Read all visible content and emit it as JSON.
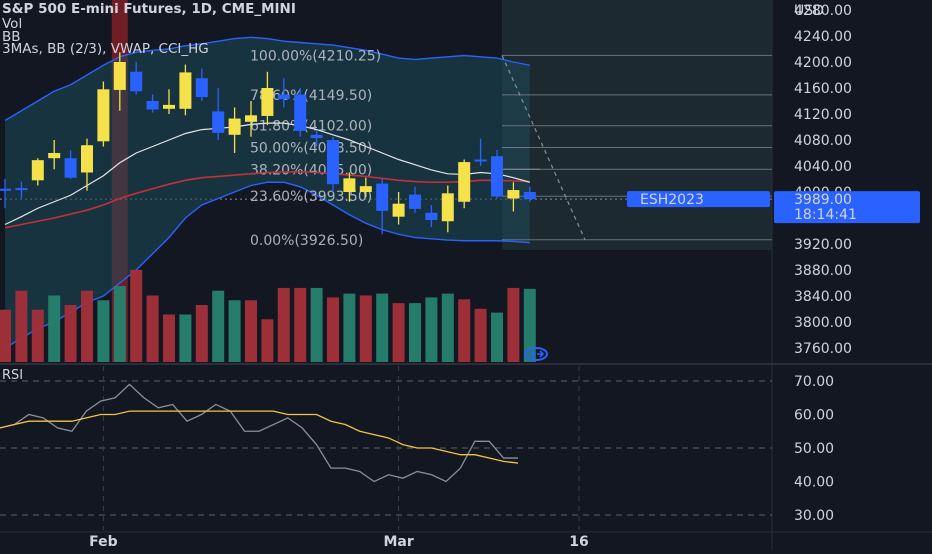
{
  "header": {
    "title": "S&P 500 E-mini Futures, 1D, CME_MINI",
    "line1": "Vol",
    "line2": "BB",
    "line3": "3MAs, BB (2/3), VWAP, CCI_HG"
  },
  "rsi_label": "RSI",
  "colors": {
    "background": "#131722",
    "up": "#f5e14a",
    "down": "#2962ff",
    "vol_up": "#26826f",
    "vol_down": "#a3303a",
    "bb_line": "#2962ff",
    "bb_fill": "#1e4a5a",
    "ma_white": "#e6e6e6",
    "ma_red": "#c2303a",
    "rsi_line": "#8a8e99",
    "rsi_ma": "#f5c242",
    "price_tag": "#2962ff",
    "highlight_red": "#7a1f26"
  },
  "chart_data": [
    {
      "type": "candlestick",
      "title": "S&P 500 E-mini Futures, 1D, CME_MINI",
      "currency": "USD",
      "ylim": [
        3740,
        4320
      ],
      "y_ticks": [
        3760,
        3800,
        3840,
        3880,
        3920,
        3960,
        4000,
        4040,
        4080,
        4120,
        4160,
        4200,
        4240,
        4280
      ],
      "y_tick_labels": [
        "3760.00",
        "3800.00",
        "3840.00",
        "3880.00",
        "3920.00",
        "3960.00",
        "4000.00",
        "4040.00",
        "4080.00",
        "4120.00",
        "4160.00",
        "4200.00",
        "4240.00",
        "4280.00"
      ],
      "x_ticks": [
        {
          "label": "Feb",
          "index": 6
        },
        {
          "label": "Mar",
          "index": 24
        },
        {
          "label": "16",
          "index": 35
        }
      ],
      "candles": [
        {
          "o": 4005,
          "h": 4020,
          "l": 3975,
          "c": 4003
        },
        {
          "o": 4006,
          "h": 4016,
          "l": 3990,
          "c": 4004
        },
        {
          "o": 4018,
          "h": 4052,
          "l": 4010,
          "c": 4049
        },
        {
          "o": 4052,
          "h": 4080,
          "l": 4035,
          "c": 4060
        },
        {
          "o": 4052,
          "h": 4064,
          "l": 4020,
          "c": 4022
        },
        {
          "o": 4030,
          "h": 4082,
          "l": 4002,
          "c": 4072
        },
        {
          "o": 4078,
          "h": 4170,
          "l": 4070,
          "c": 4158
        },
        {
          "o": 4157,
          "h": 4215,
          "l": 4125,
          "c": 4200
        },
        {
          "o": 4185,
          "h": 4200,
          "l": 4150,
          "c": 4155
        },
        {
          "o": 4140,
          "h": 4150,
          "l": 4122,
          "c": 4127
        },
        {
          "o": 4128,
          "h": 4158,
          "l": 4120,
          "c": 4134
        },
        {
          "o": 4128,
          "h": 4196,
          "l": 4118,
          "c": 4184
        },
        {
          "o": 4175,
          "h": 4190,
          "l": 4140,
          "c": 4146
        },
        {
          "o": 4124,
          "h": 4160,
          "l": 4080,
          "c": 4091
        },
        {
          "o": 4088,
          "h": 4130,
          "l": 4060,
          "c": 4113
        },
        {
          "o": 4108,
          "h": 4140,
          "l": 4085,
          "c": 4118
        },
        {
          "o": 4117,
          "h": 4185,
          "l": 4103,
          "c": 4160
        },
        {
          "o": 4150,
          "h": 4175,
          "l": 4130,
          "c": 4143
        },
        {
          "o": 4150,
          "h": 4160,
          "l": 4085,
          "c": 4094
        },
        {
          "o": 4088,
          "h": 4095,
          "l": 4070,
          "c": 4083
        },
        {
          "o": 4080,
          "h": 4085,
          "l": 4000,
          "c": 4012
        },
        {
          "o": 4000,
          "h": 4030,
          "l": 3985,
          "c": 4021
        },
        {
          "o": 4000,
          "h": 4022,
          "l": 3992,
          "c": 4009
        },
        {
          "o": 4013,
          "h": 4020,
          "l": 3935,
          "c": 3971
        },
        {
          "o": 3962,
          "h": 4000,
          "l": 3950,
          "c": 3982
        },
        {
          "o": 3996,
          "h": 4008,
          "l": 3968,
          "c": 3974
        },
        {
          "o": 3968,
          "h": 3980,
          "l": 3946,
          "c": 3957
        },
        {
          "o": 3955,
          "h": 4010,
          "l": 3938,
          "c": 3998
        },
        {
          "o": 3985,
          "h": 4050,
          "l": 3975,
          "c": 4046
        },
        {
          "o": 4050,
          "h": 4082,
          "l": 4040,
          "c": 4048
        },
        {
          "o": 4055,
          "h": 4065,
          "l": 3990,
          "c": 3993
        },
        {
          "o": 3990,
          "h": 4015,
          "l": 3970,
          "c": 4003
        },
        {
          "o": 4000,
          "h": 4008,
          "l": 3985,
          "c": 3989
        }
      ],
      "volume_relative": [
        {
          "v": 0.55,
          "up": false
        },
        {
          "v": 0.75,
          "up": false
        },
        {
          "v": 0.55,
          "up": false
        },
        {
          "v": 0.7,
          "up": true
        },
        {
          "v": 0.6,
          "up": false
        },
        {
          "v": 0.75,
          "up": false
        },
        {
          "v": 0.65,
          "up": true
        },
        {
          "v": 0.8,
          "up": true
        },
        {
          "v": 0.97,
          "up": false
        },
        {
          "v": 0.7,
          "up": false
        },
        {
          "v": 0.5,
          "up": false
        },
        {
          "v": 0.5,
          "up": true
        },
        {
          "v": 0.6,
          "up": false
        },
        {
          "v": 0.75,
          "up": true
        },
        {
          "v": 0.65,
          "up": true
        },
        {
          "v": 0.65,
          "up": false
        },
        {
          "v": 0.45,
          "up": false
        },
        {
          "v": 0.78,
          "up": false
        },
        {
          "v": 0.78,
          "up": false
        },
        {
          "v": 0.78,
          "up": true
        },
        {
          "v": 0.68,
          "up": false
        },
        {
          "v": 0.72,
          "up": true
        },
        {
          "v": 0.7,
          "up": false
        },
        {
          "v": 0.72,
          "up": true
        },
        {
          "v": 0.62,
          "up": false
        },
        {
          "v": 0.62,
          "up": true
        },
        {
          "v": 0.68,
          "up": true
        },
        {
          "v": 0.72,
          "up": true
        },
        {
          "v": 0.66,
          "up": false
        },
        {
          "v": 0.56,
          "up": false
        },
        {
          "v": 0.52,
          "up": true
        },
        {
          "v": 0.78,
          "up": false
        },
        {
          "v": 0.77,
          "up": true
        }
      ],
      "fibonacci": [
        {
          "label": "100.00%(4210.25)",
          "price": 4210.25
        },
        {
          "label": "78.60%(4149.50)",
          "price": 4149.5
        },
        {
          "label": "61.80%(4102.00)",
          "price": 4102
        },
        {
          "label": "50.00%(4068.50)",
          "price": 4068.5
        },
        {
          "label": "38.20%(4035.00)",
          "price": 4035
        },
        {
          "label": "23.60%(3993.50)",
          "price": 3993.5
        },
        {
          "label": "0.00%(3926.50)",
          "price": 3926.5
        }
      ],
      "bb_upper": [
        4110,
        4125,
        4140,
        4155,
        4165,
        4180,
        4195,
        4208,
        4215,
        4218,
        4220,
        4225,
        4228,
        4232,
        4236,
        4238,
        4236,
        4232,
        4230,
        4228,
        4226,
        4222,
        4218,
        4212,
        4206,
        4204,
        4206,
        4208,
        4210,
        4208,
        4206,
        4200,
        4195
      ],
      "bb_lower": [
        3760,
        3775,
        3790,
        3800,
        3815,
        3830,
        3840,
        3860,
        3880,
        3905,
        3930,
        3960,
        3980,
        3990,
        4000,
        4010,
        4015,
        4015,
        4008,
        3995,
        3980,
        3965,
        3952,
        3942,
        3935,
        3930,
        3928,
        3926,
        3925,
        3925,
        3925,
        3924,
        3922
      ],
      "ma_white": [
        3950,
        3962,
        3975,
        3985,
        3995,
        4010,
        4025,
        4045,
        4060,
        4070,
        4080,
        4090,
        4096,
        4098,
        4100,
        4104,
        4106,
        4106,
        4102,
        4096,
        4088,
        4080,
        4070,
        4060,
        4050,
        4042,
        4034,
        4028,
        4027,
        4030,
        4028,
        4022,
        4015
      ],
      "ma_red": [
        3945,
        3950,
        3955,
        3960,
        3966,
        3972,
        3980,
        3990,
        3998,
        4005,
        4012,
        4018,
        4022,
        4024,
        4026,
        4028,
        4030,
        4031,
        4031,
        4030,
        4028,
        4026,
        4024,
        4021,
        4018,
        4016,
        4015,
        4015,
        4016,
        4018,
        4018,
        4017,
        4016
      ],
      "price_tag": {
        "symbol": "ESH2023",
        "price": "3989.00",
        "countdown": "18:14:41",
        "value": 3989
      }
    },
    {
      "type": "line",
      "title": "RSI",
      "ylim": [
        25,
        75
      ],
      "y_ticks": [
        30,
        40,
        50,
        60,
        70
      ],
      "y_tick_labels": [
        "30.00",
        "40.00",
        "50.00",
        "60.00",
        "70.00"
      ],
      "series": [
        {
          "values": [
            56,
            57,
            60,
            59,
            56,
            55,
            61,
            64,
            65,
            69,
            65,
            62,
            63,
            58,
            60,
            63,
            61,
            55,
            55,
            57,
            59,
            56,
            51,
            44,
            44,
            43,
            40,
            42,
            41,
            43,
            42,
            40,
            44,
            52,
            52,
            47,
            47
          ]
        },
        {
          "values": [
            56,
            57,
            58,
            58,
            58,
            58,
            59,
            60,
            60,
            61,
            61,
            61,
            61,
            61,
            61,
            61,
            61,
            61,
            61,
            61,
            60,
            60,
            60,
            58,
            57,
            55,
            54,
            53,
            51,
            50,
            50,
            49,
            48,
            48,
            47,
            46,
            45.5
          ]
        }
      ]
    }
  ]
}
